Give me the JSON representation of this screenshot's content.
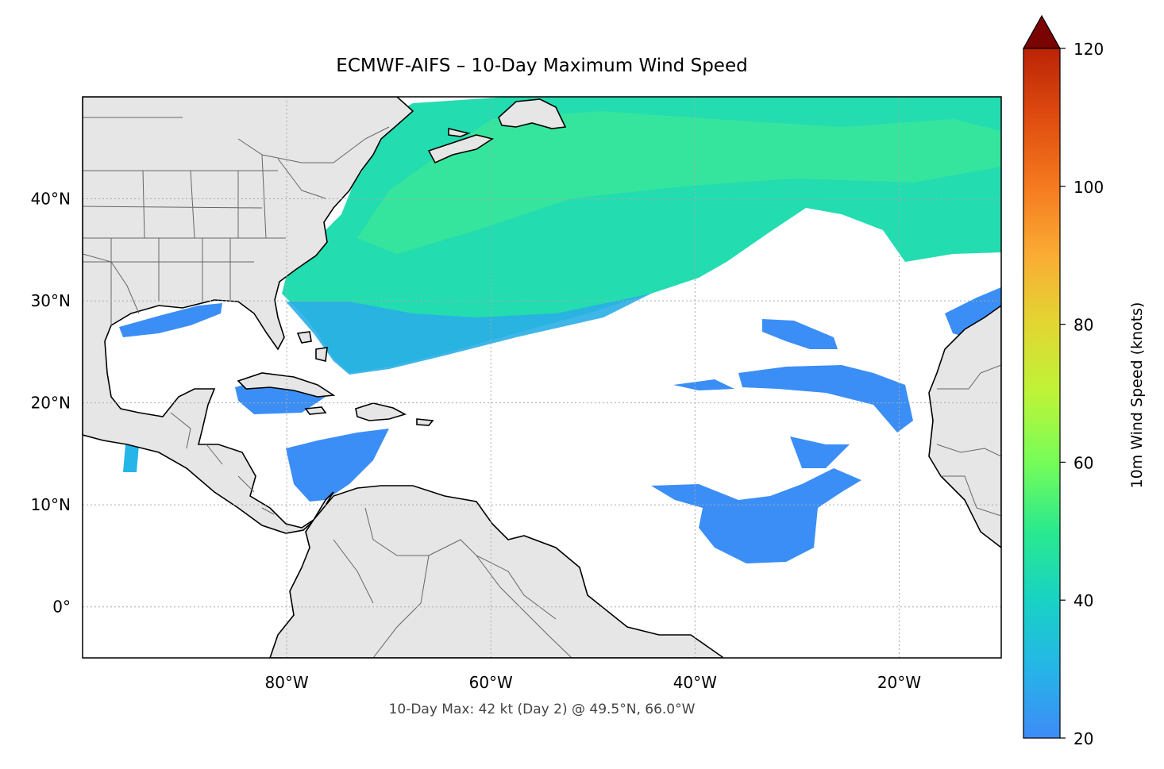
{
  "title": "ECMWF-AIFS – 10-Day Maximum Wind Speed",
  "footer": "10-Day Max: 42 kt (Day 2) @ 49.5°N, 66.0°W",
  "map": {
    "lon_range": [
      -100,
      -10
    ],
    "lat_range": [
      -5,
      50
    ],
    "lon_ticks": [
      {
        "value": -80,
        "label": "80°W"
      },
      {
        "value": -60,
        "label": "60°W"
      },
      {
        "value": -40,
        "label": "40°W"
      },
      {
        "value": -20,
        "label": "20°W"
      }
    ],
    "lat_ticks": [
      {
        "value": 40,
        "label": "40°N"
      },
      {
        "value": 30,
        "label": "30°N"
      },
      {
        "value": 20,
        "label": "20°N"
      },
      {
        "value": 10,
        "label": "10°N"
      },
      {
        "value": 0,
        "label": "0°"
      }
    ],
    "gridlines": true,
    "land_color": "#e6e6e6",
    "ocean_color": "#ffffff"
  },
  "colorbar": {
    "label": "10m Wind Speed (knots)",
    "min": 20,
    "max": 120,
    "extend": "max",
    "extend_color": "#7a0403",
    "ticks": [
      "20",
      "40",
      "60",
      "80",
      "100",
      "120"
    ],
    "colormap": [
      "#3e8bf7",
      "#26b5e8",
      "#18d2c4",
      "#2ae98e",
      "#76fd58",
      "#bdf438",
      "#e2d632",
      "#faac34",
      "#f57a1f",
      "#df4c10",
      "#bb2306",
      "#7a0403"
    ]
  }
}
